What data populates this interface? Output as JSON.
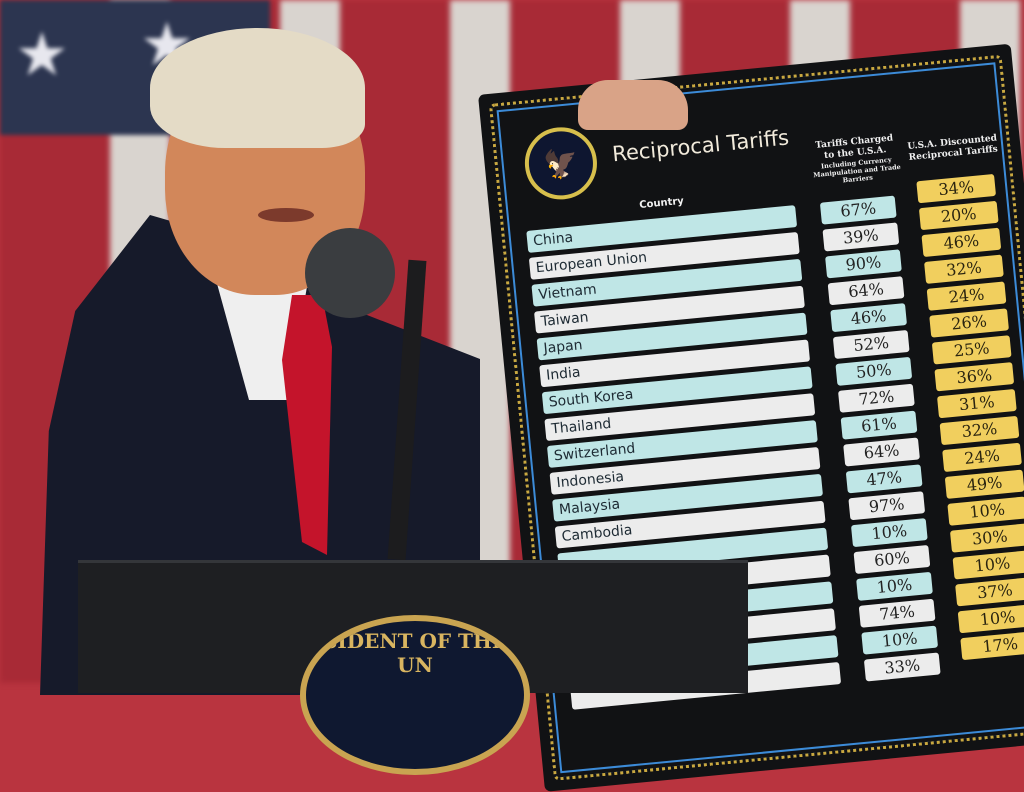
{
  "board": {
    "title": "Reciprocal Tariffs",
    "seal_icon": "presidential-seal",
    "country_header": "Country",
    "tariffs_header": "Tariffs Charged to the U.S.A.",
    "tariffs_subheader": "Including Currency Manipulation and Trade Barriers",
    "discounted_header": "U.S.A. Discounted Reciprocal Tariffs",
    "rows": [
      {
        "country": "China",
        "charged": "67%",
        "reciprocal": "34%"
      },
      {
        "country": "European Union",
        "charged": "39%",
        "reciprocal": "20%"
      },
      {
        "country": "Vietnam",
        "charged": "90%",
        "reciprocal": "46%"
      },
      {
        "country": "Taiwan",
        "charged": "64%",
        "reciprocal": "32%"
      },
      {
        "country": "Japan",
        "charged": "46%",
        "reciprocal": "24%"
      },
      {
        "country": "India",
        "charged": "52%",
        "reciprocal": "26%"
      },
      {
        "country": "South Korea",
        "charged": "50%",
        "reciprocal": "25%"
      },
      {
        "country": "Thailand",
        "charged": "72%",
        "reciprocal": "36%"
      },
      {
        "country": "Switzerland",
        "charged": "61%",
        "reciprocal": "31%"
      },
      {
        "country": "Indonesia",
        "charged": "64%",
        "reciprocal": "32%"
      },
      {
        "country": "Malaysia",
        "charged": "47%",
        "reciprocal": "24%"
      },
      {
        "country": "Cambodia",
        "charged": "97%",
        "reciprocal": "49%"
      },
      {
        "country": "",
        "charged": "10%",
        "reciprocal": "10%"
      },
      {
        "country": "",
        "charged": "60%",
        "reciprocal": "30%"
      },
      {
        "country": "",
        "charged": "10%",
        "reciprocal": "10%"
      },
      {
        "country": "",
        "charged": "74%",
        "reciprocal": "37%"
      },
      {
        "country": "",
        "charged": "10%",
        "reciprocal": "10%"
      },
      {
        "country": "",
        "charged": "33%",
        "reciprocal": "17%"
      }
    ]
  },
  "podium": {
    "seal_text": "SIDENT OF THE UN"
  },
  "colors": {
    "teal": "#bfe6e6",
    "white": "#ececec",
    "yellow": "#f1cf5e",
    "board": "#111214",
    "tie": "#c4142b"
  }
}
